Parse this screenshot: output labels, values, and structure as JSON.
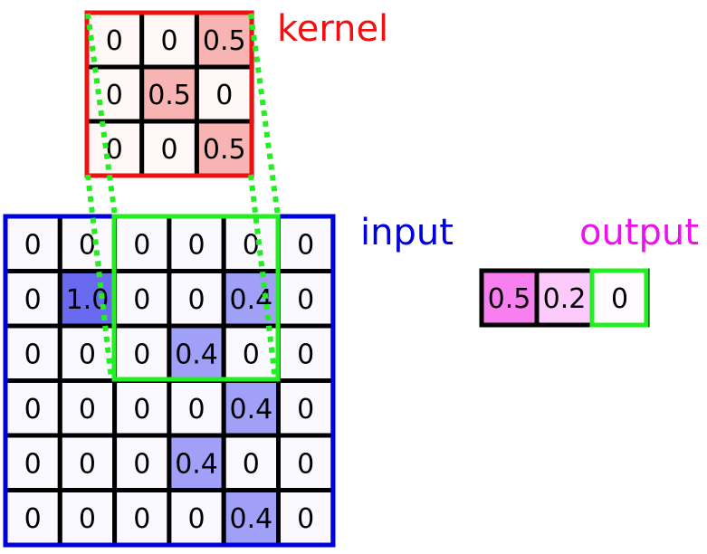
{
  "labels": {
    "kernel": "kernel",
    "input": "input",
    "output": "output"
  },
  "colors": {
    "kernel": "#ee1111",
    "input": "#0000dd",
    "output": "#ee11ee",
    "window": "#22ee22",
    "kernel_zero": "#fff8f7",
    "kernel_high": "#f8b3b3",
    "input_zero": "#f9f9ff",
    "input_high": "#6a6af0",
    "input_mid": "#a0a0f8",
    "output_high": "#f77ff0",
    "output_mid": "#fccafa",
    "output_zero": "#fffafe"
  },
  "kernel": [
    [
      "0",
      "0",
      "0.5"
    ],
    [
      "0",
      "0.5",
      "0"
    ],
    [
      "0",
      "0",
      "0.5"
    ]
  ],
  "input": [
    [
      "0",
      "0",
      "0",
      "0",
      "0",
      "0"
    ],
    [
      "0",
      "1.0",
      "0",
      "0",
      "0.4",
      "0"
    ],
    [
      "0",
      "0",
      "0",
      "0.4",
      "0",
      "0"
    ],
    [
      "0",
      "0",
      "0",
      "0",
      "0.4",
      "0"
    ],
    [
      "0",
      "0",
      "0",
      "0.4",
      "0",
      "0"
    ],
    [
      "0",
      "0",
      "0",
      "0",
      "0.4",
      "0"
    ]
  ],
  "output": [
    "0.5",
    "0.2",
    "0"
  ],
  "current_window": {
    "row": 0,
    "col": 2,
    "output_index": 2
  }
}
